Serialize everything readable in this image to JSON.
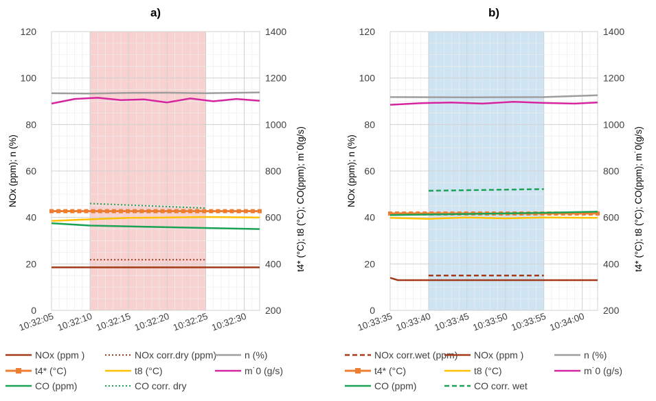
{
  "chart_data": [
    {
      "panel_label": "a)",
      "type": "line",
      "x_ticks": [
        "10:32:05",
        "10:32:10",
        "10:32:15",
        "10:32:20",
        "10:32:25",
        "10:32:30"
      ],
      "xlim": [
        "10:32:05",
        "10:32:32"
      ],
      "ylabel": "NOx (ppm); n (%)",
      "ylim": [
        0,
        120
      ],
      "y_ticks": [
        "0",
        "20",
        "40",
        "60",
        "80",
        "100",
        "120"
      ],
      "y2label": "t4* (°C); t8 (°C); CO(ppm); m˙0(g/s)",
      "y2lim": [
        200,
        1400
      ],
      "y2_ticks": [
        "200",
        "400",
        "600",
        "800",
        "1000",
        "1200",
        "1400"
      ],
      "grid": true,
      "highlight": {
        "from": "10:32:10",
        "to": "10:32:25",
        "color": "#f8d2d0"
      },
      "legend": {
        "placement": "bottom",
        "entries": [
          {
            "label": "NOx (ppm )",
            "color": "#a23a1a",
            "style": "solid"
          },
          {
            "label": "NOx corr.dry (ppm)",
            "color": "#a23a1a",
            "style": "dotted"
          },
          {
            "label": "n (%)",
            "color": "#9e9e9e",
            "style": "solid"
          },
          {
            "label": "t4* (°C)",
            "color": "#ed7d31",
            "style": "square"
          },
          {
            "label": "t8 (°C)",
            "color": "#ffc000",
            "style": "solid"
          },
          {
            "label": "m˙0 (g/s)",
            "color": "#d6249f",
            "style": "solid"
          },
          {
            "label": "CO (ppm)",
            "color": "#1aa255",
            "style": "solid"
          },
          {
            "label": "CO corr. dry",
            "color": "#1aa255",
            "style": "dotted"
          }
        ]
      },
      "series": [
        {
          "name": "NOx (ppm )",
          "axis": "left",
          "x": [
            "10:32:05",
            "10:32:32"
          ],
          "y": [
            18.5,
            18.5
          ]
        },
        {
          "name": "NOx corr.dry (ppm)",
          "axis": "left",
          "x": [
            "10:32:10",
            "10:32:25"
          ],
          "y": [
            21.8,
            21.8
          ]
        },
        {
          "name": "n (%)",
          "axis": "left",
          "x": [
            "10:32:05",
            "10:32:10",
            "10:32:15",
            "10:32:20",
            "10:32:25",
            "10:32:32"
          ],
          "y": [
            93.5,
            93.3,
            93.6,
            93.7,
            93.5,
            93.8
          ]
        },
        {
          "name": "m˙0 (g/s)",
          "axis": "right",
          "x": [
            "10:32:05",
            "10:32:08",
            "10:32:11",
            "10:32:14",
            "10:32:17",
            "10:32:20",
            "10:32:23",
            "10:32:26",
            "10:32:29",
            "10:32:32"
          ],
          "y": [
            1090,
            1110,
            1115,
            1105,
            1108,
            1095,
            1112,
            1100,
            1110,
            1102
          ]
        },
        {
          "name": "t4* (°C)",
          "axis": "right",
          "x": [
            "10:32:05",
            "10:32:32"
          ],
          "y": [
            627,
            627
          ]
        },
        {
          "name": "t8 (°C)",
          "axis": "right",
          "x": [
            "10:32:05",
            "10:32:10",
            "10:32:15",
            "10:32:20",
            "10:32:25",
            "10:32:32"
          ],
          "y": [
            585,
            592,
            598,
            600,
            602,
            600
          ]
        },
        {
          "name": "CO (ppm)",
          "axis": "right",
          "x": [
            "10:32:05",
            "10:32:10",
            "10:32:20",
            "10:32:32"
          ],
          "y": [
            575,
            565,
            558,
            550
          ]
        },
        {
          "name": "CO corr. dry",
          "axis": "right",
          "x": [
            "10:32:10",
            "10:32:25"
          ],
          "y": [
            660,
            640
          ]
        }
      ]
    },
    {
      "panel_label": "b)",
      "type": "line",
      "x_ticks": [
        "10:33:35",
        "10:33:40",
        "10:33:45",
        "10:33:50",
        "10:33:55",
        "10:34:00"
      ],
      "xlim": [
        "10:33:35",
        "10:34:02"
      ],
      "ylabel": "NOx (ppm); n (%)",
      "ylim": [
        0,
        120
      ],
      "y_ticks": [
        "0",
        "20",
        "40",
        "60",
        "80",
        "100",
        "120"
      ],
      "y2label": "t4* (°C); t8 (°C); CO(ppm); m˙0(g/s)",
      "y2lim": [
        200,
        1400
      ],
      "y2_ticks": [
        "200",
        "400",
        "600",
        "800",
        "1000",
        "1200",
        "1400"
      ],
      "grid": true,
      "highlight": {
        "from": "10:33:40",
        "to": "10:33:55",
        "color": "#cfe4f3"
      },
      "legend": {
        "placement": "bottom",
        "entries": [
          {
            "label": "NOx corr.wet (ppm)",
            "color": "#a23a1a",
            "style": "dashed"
          },
          {
            "label": "NOx (ppm )",
            "color": "#a23a1a",
            "style": "solid"
          },
          {
            "label": "n (%)",
            "color": "#9e9e9e",
            "style": "solid"
          },
          {
            "label": "t4* (°C)",
            "color": "#ed7d31",
            "style": "square"
          },
          {
            "label": "t8 (°C)",
            "color": "#ffc000",
            "style": "solid"
          },
          {
            "label": "m˙0 (g/s)",
            "color": "#d6249f",
            "style": "solid"
          },
          {
            "label": "CO (ppm)",
            "color": "#1aa255",
            "style": "solid"
          },
          {
            "label": "CO corr. wet",
            "color": "#1aa255",
            "style": "dashed"
          }
        ]
      },
      "series": [
        {
          "name": "NOx (ppm )",
          "axis": "left",
          "x": [
            "10:33:35",
            "10:33:36",
            "10:34:02"
          ],
          "y": [
            14,
            13,
            13
          ]
        },
        {
          "name": "NOx corr.wet (ppm)",
          "axis": "left",
          "x": [
            "10:33:40",
            "10:33:55"
          ],
          "y": [
            15,
            15
          ]
        },
        {
          "name": "n (%)",
          "axis": "left",
          "x": [
            "10:33:35",
            "10:33:45",
            "10:33:55",
            "10:34:02"
          ],
          "y": [
            91.8,
            91.7,
            91.8,
            92.6
          ]
        },
        {
          "name": "m˙0 (g/s)",
          "axis": "right",
          "x": [
            "10:33:35",
            "10:33:39",
            "10:33:43",
            "10:33:47",
            "10:33:51",
            "10:33:55",
            "10:33:59",
            "10:34:02"
          ],
          "y": [
            1085,
            1092,
            1095,
            1090,
            1098,
            1093,
            1090,
            1095
          ]
        },
        {
          "name": "t4* (°C)",
          "axis": "right",
          "x": [
            "10:33:35",
            "10:34:02"
          ],
          "y": [
            617,
            617
          ]
        },
        {
          "name": "t8 (°C)",
          "axis": "right",
          "x": [
            "10:33:35",
            "10:33:40",
            "10:33:45",
            "10:33:50",
            "10:33:55",
            "10:34:02"
          ],
          "y": [
            598,
            594,
            600,
            596,
            600,
            598
          ]
        },
        {
          "name": "CO (ppm)",
          "axis": "right",
          "x": [
            "10:33:35",
            "10:33:45",
            "10:33:55",
            "10:34:02"
          ],
          "y": [
            610,
            615,
            620,
            625
          ]
        },
        {
          "name": "CO corr. wet",
          "axis": "right",
          "x": [
            "10:33:40",
            "10:33:55"
          ],
          "y": [
            715,
            722
          ]
        }
      ]
    }
  ]
}
